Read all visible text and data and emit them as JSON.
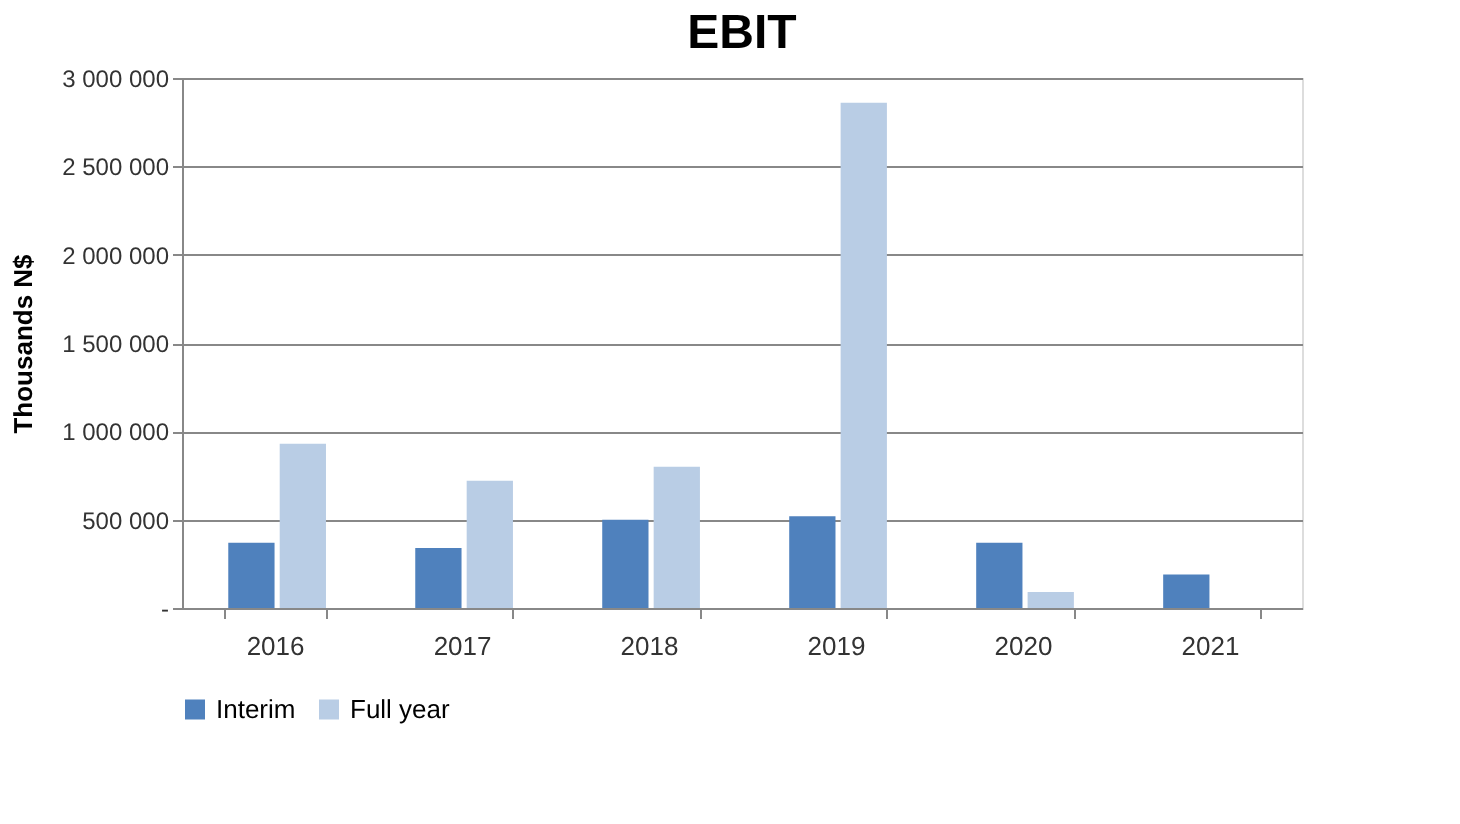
{
  "chart_data": {
    "type": "bar",
    "title": "EBIT",
    "ylabel": "Thousands N$",
    "categories": [
      "2016",
      "2017",
      "2018",
      "2019",
      "2020",
      "2021"
    ],
    "series": [
      {
        "name": "Interim",
        "color": "#4f81bd",
        "values": [
          370000,
          340000,
          500000,
          520000,
          370000,
          190000
        ]
      },
      {
        "name": "Full year",
        "color": "#b9cde5",
        "values": [
          930000,
          720000,
          800000,
          2860000,
          90000,
          null
        ]
      }
    ],
    "ylim": [
      0,
      3000000
    ],
    "yticks": [
      {
        "value": 0,
        "label": "-"
      },
      {
        "value": 500000,
        "label": "500 000"
      },
      {
        "value": 1000000,
        "label": "1 000 000"
      },
      {
        "value": 1500000,
        "label": "1 500 000"
      },
      {
        "value": 2000000,
        "label": "2 000 000"
      },
      {
        "value": 2500000,
        "label": "2 500 000"
      },
      {
        "value": 3000000,
        "label": "3 000 000"
      }
    ],
    "grid": "y",
    "legend": "bottom"
  }
}
